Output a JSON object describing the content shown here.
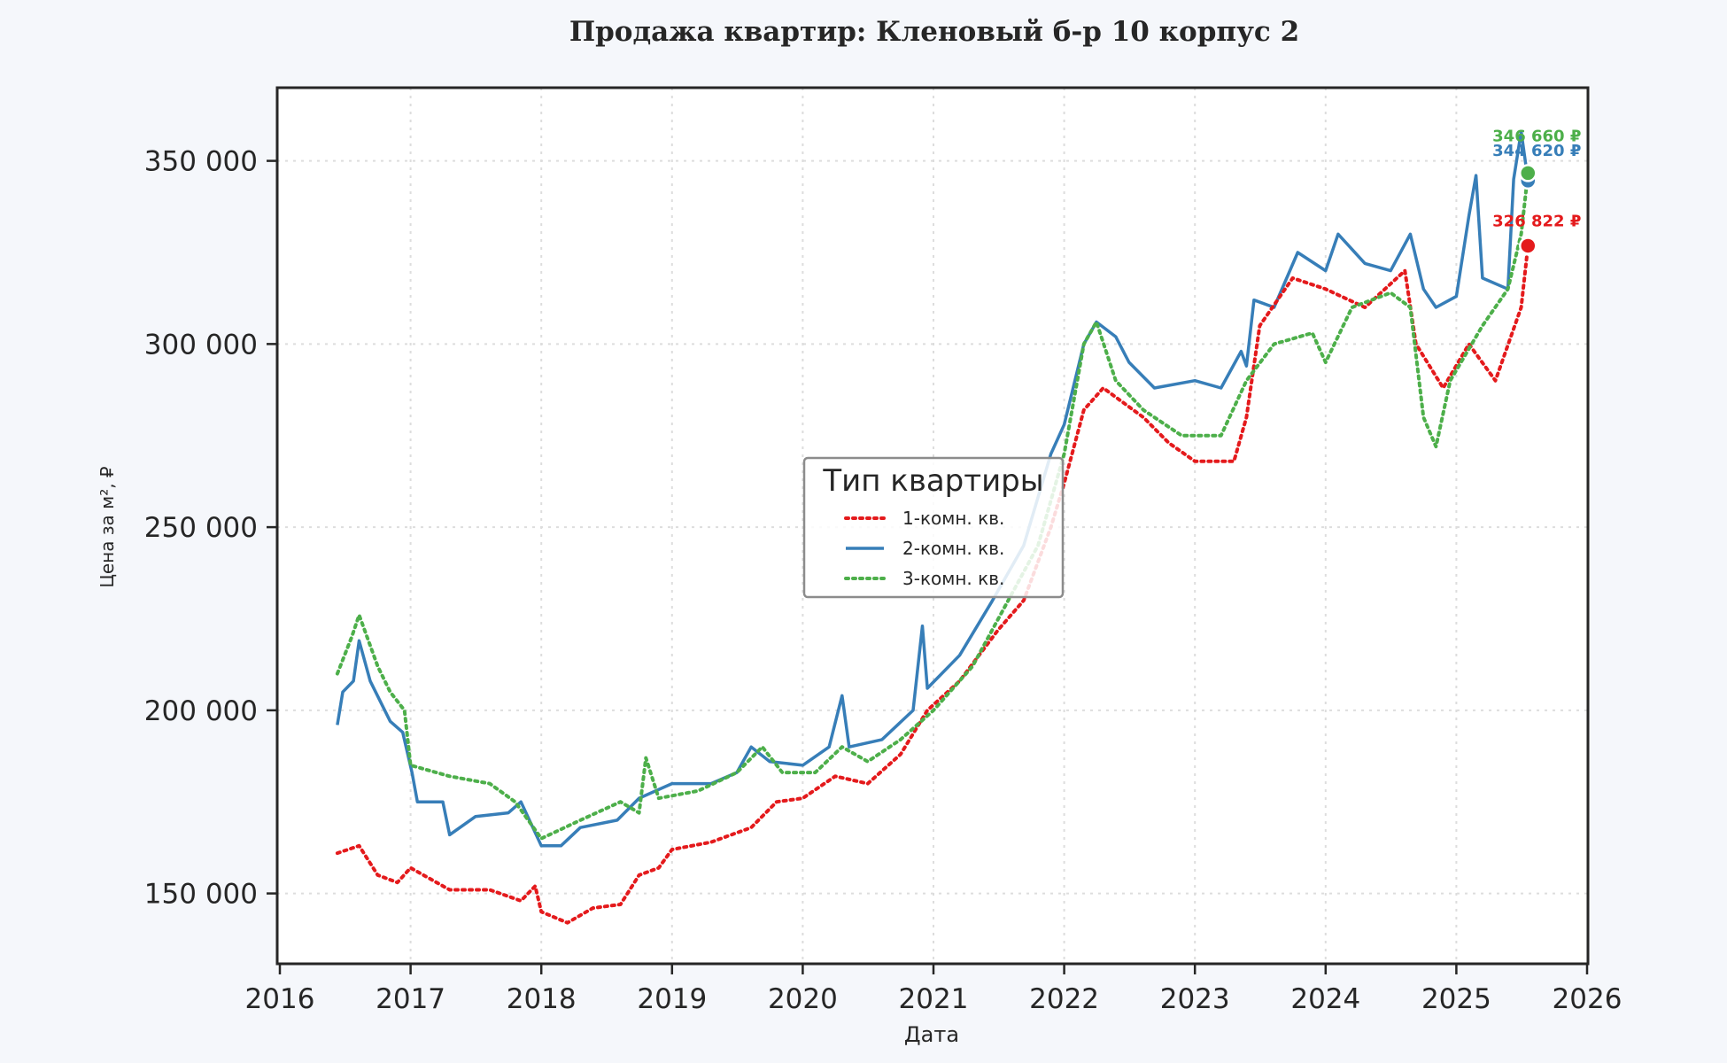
{
  "chart_data": {
    "type": "line",
    "title": "Продажа квартир: Кленовый б-р 10 корпус 2",
    "xlabel": "Дата",
    "ylabel": "Цена за м², ₽",
    "xlim": [
      "2016",
      "2026"
    ],
    "ylim": [
      130000,
      370000
    ],
    "x_ticks": [
      "2016",
      "2017",
      "2018",
      "2019",
      "2020",
      "2021",
      "2022",
      "2023",
      "2024",
      "2025",
      "2026"
    ],
    "y_ticks": [
      {
        "value": 150000,
        "label": "150 000"
      },
      {
        "value": 200000,
        "label": "200 000"
      },
      {
        "value": 250000,
        "label": "250 000"
      },
      {
        "value": 300000,
        "label": "300 000"
      },
      {
        "value": 350000,
        "label": "350 000"
      }
    ],
    "grid": true,
    "legend": {
      "title": "Тип квартиры",
      "placement": "center"
    },
    "series": [
      {
        "name": "1-комн. кв.",
        "color": "#e41a1c",
        "style": "dotted",
        "last_label": "326 822 ₽",
        "points": [
          [
            "2016-06-10",
            161000
          ],
          [
            "2016-08-10",
            163000
          ],
          [
            "2016-10-01",
            155000
          ],
          [
            "2016-11-25",
            153000
          ],
          [
            "2017-01-01",
            157000
          ],
          [
            "2017-04-20",
            151000
          ],
          [
            "2017-08-10",
            151000
          ],
          [
            "2017-11-05",
            148000
          ],
          [
            "2017-12-15",
            152000
          ],
          [
            "2018-01-01",
            145000
          ],
          [
            "2018-03-15",
            142000
          ],
          [
            "2018-05-25",
            146000
          ],
          [
            "2018-08-10",
            147000
          ],
          [
            "2018-10-01",
            155000
          ],
          [
            "2018-11-25",
            157000
          ],
          [
            "2019-01-01",
            162000
          ],
          [
            "2019-04-20",
            164000
          ],
          [
            "2019-08-10",
            168000
          ],
          [
            "2019-10-20",
            175000
          ],
          [
            "2020-01-01",
            176000
          ],
          [
            "2020-04-01",
            182000
          ],
          [
            "2020-07-01",
            180000
          ],
          [
            "2020-10-01",
            188000
          ],
          [
            "2020-12-15",
            200000
          ],
          [
            "2021-03-15",
            208000
          ],
          [
            "2021-07-01",
            222000
          ],
          [
            "2021-09-10",
            230000
          ],
          [
            "2021-11-25",
            250000
          ],
          [
            "2022-01-01",
            262000
          ],
          [
            "2022-02-25",
            282000
          ],
          [
            "2022-04-20",
            288000
          ],
          [
            "2022-08-10",
            280000
          ],
          [
            "2022-10-20",
            273000
          ],
          [
            "2023-01-01",
            268000
          ],
          [
            "2023-04-20",
            268000
          ],
          [
            "2023-05-25",
            280000
          ],
          [
            "2023-07-01",
            305000
          ],
          [
            "2023-10-01",
            318000
          ],
          [
            "2024-01-01",
            315000
          ],
          [
            "2024-04-20",
            310000
          ],
          [
            "2024-08-10",
            320000
          ],
          [
            "2024-09-10",
            300000
          ],
          [
            "2024-11-25",
            288000
          ],
          [
            "2025-02-05",
            300000
          ],
          [
            "2025-04-20",
            290000
          ],
          [
            "2025-07-01",
            310000
          ],
          [
            "2025-07-20",
            326822
          ]
        ]
      },
      {
        "name": "2-комн. кв.",
        "color": "#377eb8",
        "style": "solid",
        "last_label": "344 620 ₽",
        "points": [
          [
            "2016-06-10",
            196000
          ],
          [
            "2016-06-25",
            205000
          ],
          [
            "2016-07-25",
            208000
          ],
          [
            "2016-08-10",
            219000
          ],
          [
            "2016-09-10",
            208000
          ],
          [
            "2016-11-05",
            197000
          ],
          [
            "2016-12-10",
            194000
          ],
          [
            "2017-01-05",
            183000
          ],
          [
            "2017-01-20",
            175000
          ],
          [
            "2017-04-01",
            175000
          ],
          [
            "2017-04-20",
            166000
          ],
          [
            "2017-07-01",
            171000
          ],
          [
            "2017-10-01",
            172000
          ],
          [
            "2017-11-05",
            175000
          ],
          [
            "2018-01-01",
            163000
          ],
          [
            "2018-02-25",
            163000
          ],
          [
            "2018-04-20",
            168000
          ],
          [
            "2018-08-01",
            170000
          ],
          [
            "2018-10-01",
            176000
          ],
          [
            "2019-01-01",
            180000
          ],
          [
            "2019-04-20",
            180000
          ],
          [
            "2019-07-01",
            183000
          ],
          [
            "2019-08-10",
            190000
          ],
          [
            "2019-10-01",
            186000
          ],
          [
            "2020-01-01",
            185000
          ],
          [
            "2020-03-15",
            190000
          ],
          [
            "2020-04-20",
            204000
          ],
          [
            "2020-05-10",
            190000
          ],
          [
            "2020-08-10",
            192000
          ],
          [
            "2020-11-05",
            200000
          ],
          [
            "2020-12-01",
            223000
          ],
          [
            "2020-12-15",
            206000
          ],
          [
            "2021-03-15",
            215000
          ],
          [
            "2021-06-15",
            230000
          ],
          [
            "2021-09-10",
            245000
          ],
          [
            "2021-11-25",
            270000
          ],
          [
            "2022-01-01",
            278000
          ],
          [
            "2022-02-25",
            300000
          ],
          [
            "2022-04-01",
            306000
          ],
          [
            "2022-05-25",
            302000
          ],
          [
            "2022-07-01",
            295000
          ],
          [
            "2022-09-10",
            288000
          ],
          [
            "2023-01-01",
            290000
          ],
          [
            "2023-03-15",
            288000
          ],
          [
            "2023-05-10",
            298000
          ],
          [
            "2023-05-25",
            294000
          ],
          [
            "2023-06-15",
            312000
          ],
          [
            "2023-08-10",
            310000
          ],
          [
            "2023-10-15",
            325000
          ],
          [
            "2024-01-01",
            320000
          ],
          [
            "2024-02-05",
            330000
          ],
          [
            "2024-04-20",
            322000
          ],
          [
            "2024-07-01",
            320000
          ],
          [
            "2024-08-25",
            330000
          ],
          [
            "2024-10-01",
            315000
          ],
          [
            "2024-11-05",
            310000
          ],
          [
            "2025-01-01",
            313000
          ],
          [
            "2025-02-05",
            335000
          ],
          [
            "2025-02-25",
            346000
          ],
          [
            "2025-03-15",
            318000
          ],
          [
            "2025-05-25",
            315000
          ],
          [
            "2025-06-10",
            345000
          ],
          [
            "2025-07-01",
            358000
          ],
          [
            "2025-07-20",
            344620
          ]
        ]
      },
      {
        "name": "3-комн. кв.",
        "color": "#4daf4a",
        "style": "dotted",
        "last_label": "346 660 ₽",
        "points": [
          [
            "2016-06-10",
            210000
          ],
          [
            "2016-07-20",
            220000
          ],
          [
            "2016-08-10",
            226000
          ],
          [
            "2016-10-01",
            212000
          ],
          [
            "2016-11-05",
            205000
          ],
          [
            "2016-12-15",
            200000
          ],
          [
            "2017-01-01",
            185000
          ],
          [
            "2017-04-20",
            182000
          ],
          [
            "2017-08-10",
            180000
          ],
          [
            "2017-10-20",
            175000
          ],
          [
            "2018-01-01",
            165000
          ],
          [
            "2018-04-20",
            170000
          ],
          [
            "2018-08-10",
            175000
          ],
          [
            "2018-10-01",
            172000
          ],
          [
            "2018-10-20",
            187000
          ],
          [
            "2018-11-25",
            176000
          ],
          [
            "2019-03-15",
            178000
          ],
          [
            "2019-07-01",
            183000
          ],
          [
            "2019-09-10",
            190000
          ],
          [
            "2019-11-05",
            183000
          ],
          [
            "2020-02-05",
            183000
          ],
          [
            "2020-04-20",
            190000
          ],
          [
            "2020-07-01",
            186000
          ],
          [
            "2020-10-01",
            192000
          ],
          [
            "2021-01-01",
            200000
          ],
          [
            "2021-04-20",
            212000
          ],
          [
            "2021-07-01",
            225000
          ],
          [
            "2021-10-20",
            245000
          ],
          [
            "2022-01-01",
            270000
          ],
          [
            "2022-02-25",
            300000
          ],
          [
            "2022-04-01",
            306000
          ],
          [
            "2022-05-25",
            290000
          ],
          [
            "2022-08-10",
            282000
          ],
          [
            "2022-11-25",
            275000
          ],
          [
            "2023-03-15",
            275000
          ],
          [
            "2023-05-25",
            290000
          ],
          [
            "2023-08-10",
            300000
          ],
          [
            "2023-11-25",
            303000
          ],
          [
            "2024-01-01",
            295000
          ],
          [
            "2024-03-15",
            310000
          ],
          [
            "2024-07-01",
            314000
          ],
          [
            "2024-08-25",
            310000
          ],
          [
            "2024-10-01",
            280000
          ],
          [
            "2024-11-05",
            272000
          ],
          [
            "2024-12-15",
            290000
          ],
          [
            "2025-03-15",
            305000
          ],
          [
            "2025-05-25",
            315000
          ],
          [
            "2025-07-01",
            330000
          ],
          [
            "2025-07-20",
            346660
          ]
        ]
      }
    ]
  }
}
